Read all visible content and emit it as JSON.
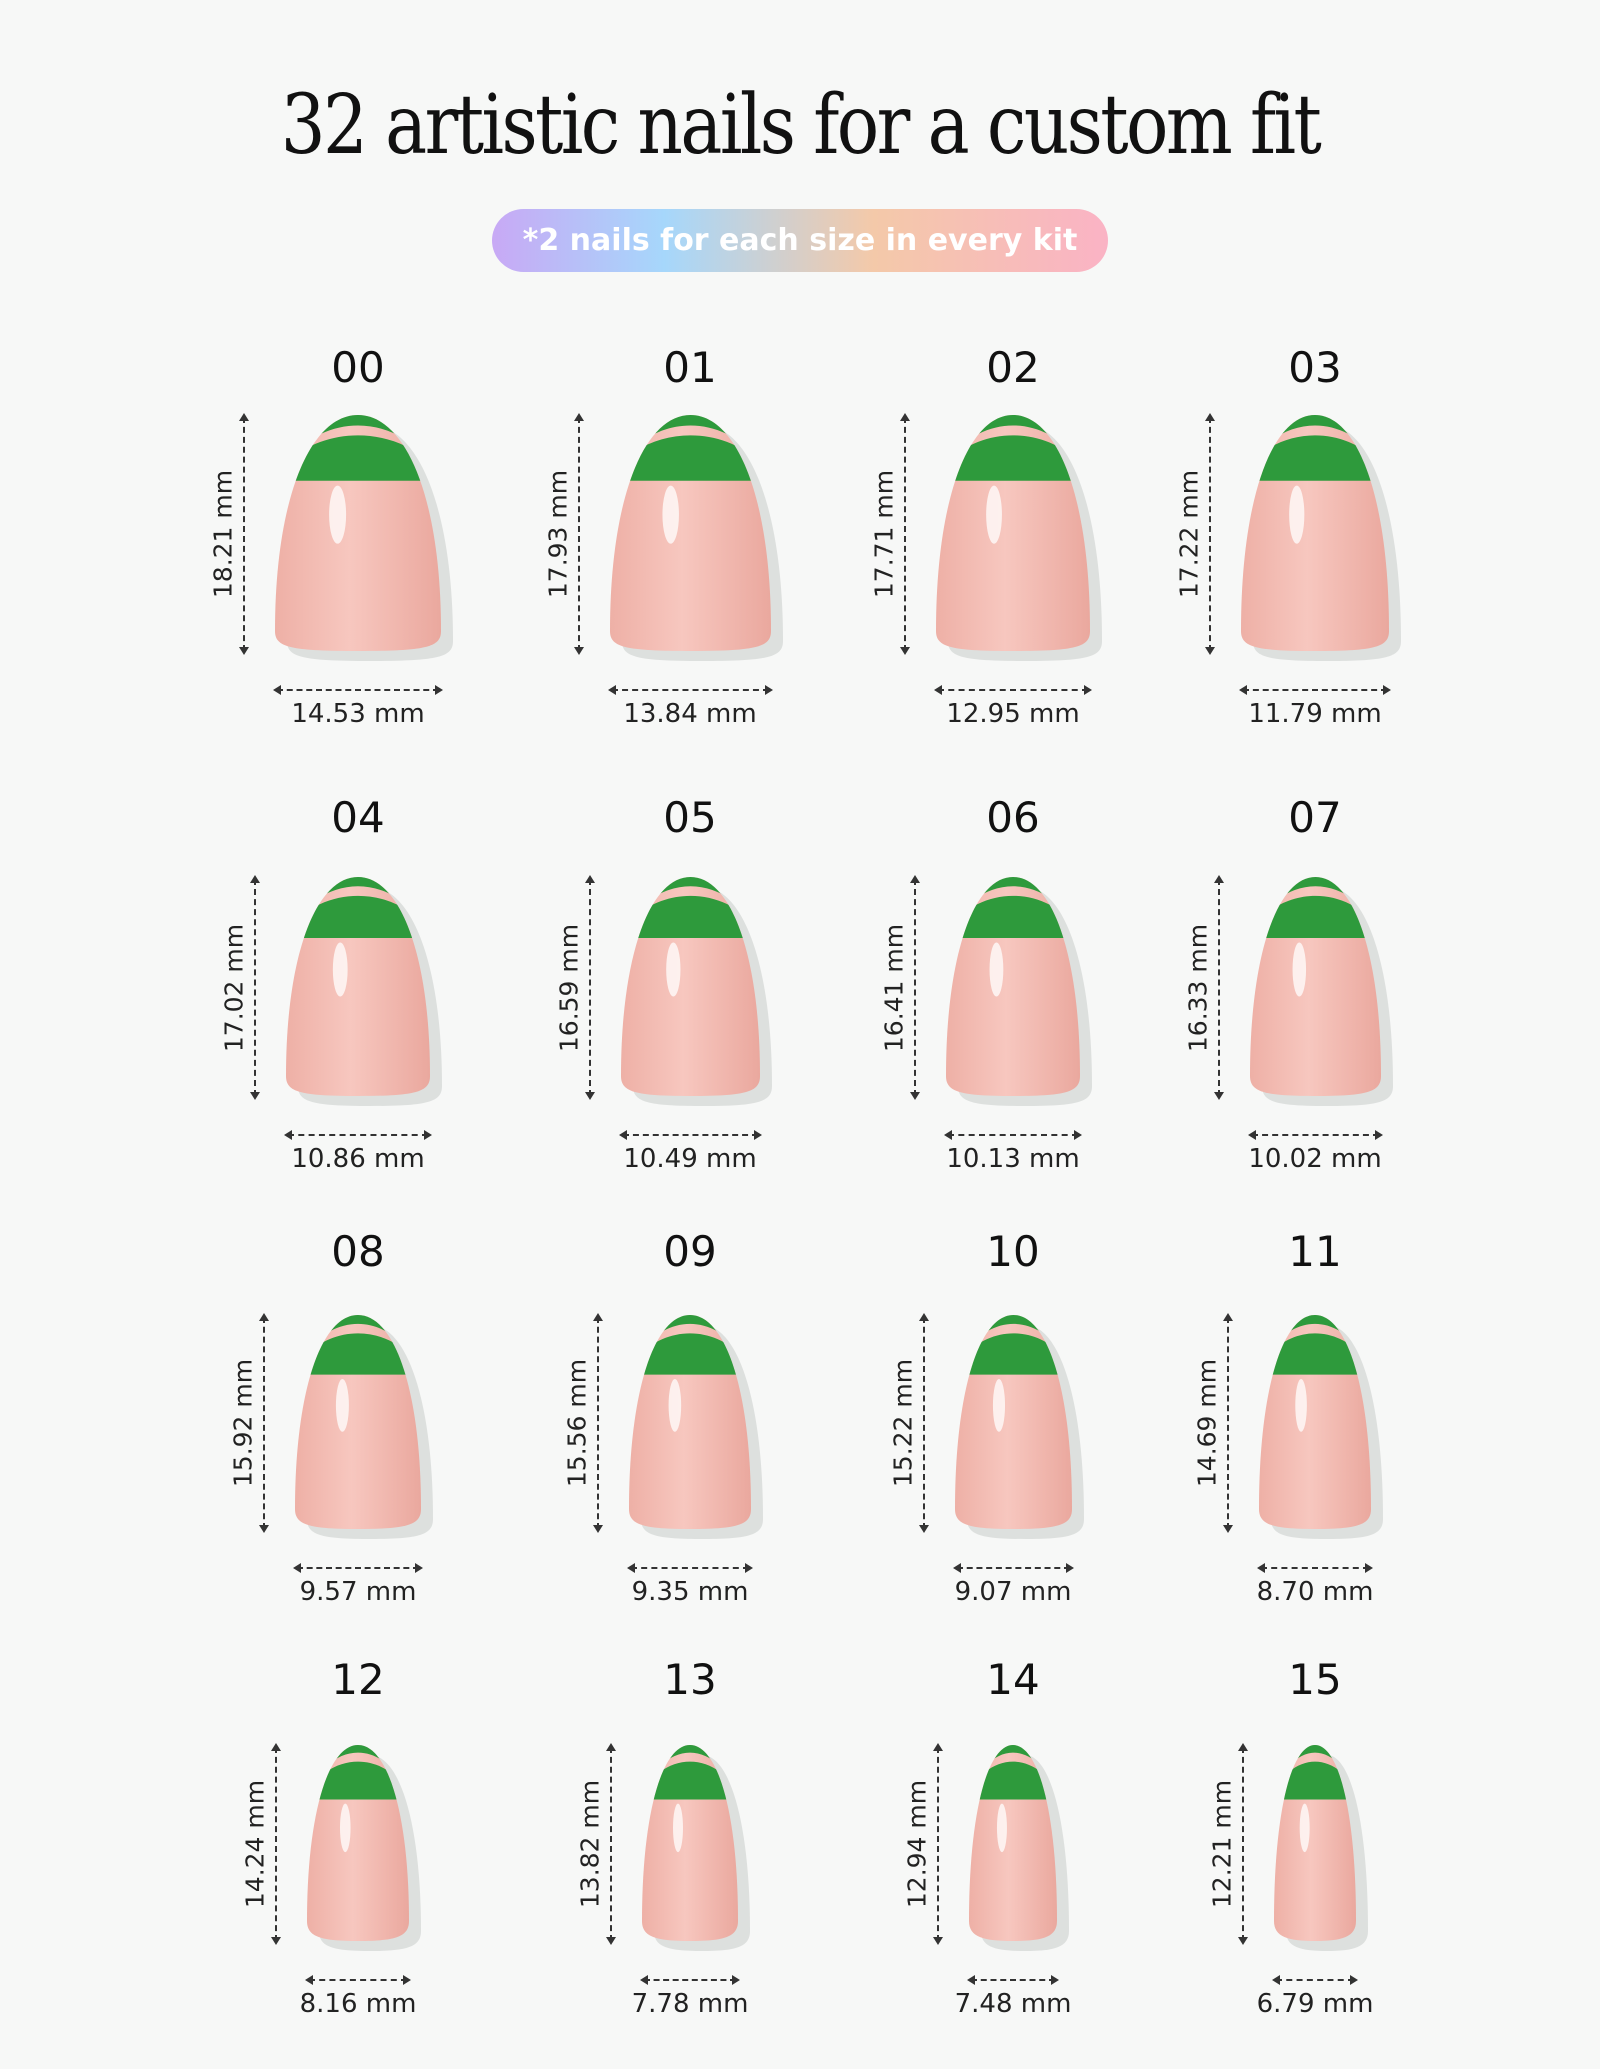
{
  "title": "32 artistic nails for a custom fit",
  "subtitle": "*2 nails for each size in every kit",
  "colors": {
    "tip": "#2e9a3c",
    "nail_body": "#f3b9b1",
    "shadow": "#c9cccb"
  },
  "sizes": [
    {
      "id": "00",
      "height": "18.21 mm",
      "width": "14.53 mm"
    },
    {
      "id": "01",
      "height": "17.93 mm",
      "width": "13.84 mm"
    },
    {
      "id": "02",
      "height": "17.71 mm",
      "width": "12.95 mm"
    },
    {
      "id": "03",
      "height": "17.22 mm",
      "width": "11.79 mm"
    },
    {
      "id": "04",
      "height": "17.02 mm",
      "width": "10.86 mm"
    },
    {
      "id": "05",
      "height": "16.59 mm",
      "width": "10.49 mm"
    },
    {
      "id": "06",
      "height": "16.41 mm",
      "width": "10.13 mm"
    },
    {
      "id": "07",
      "height": "16.33 mm",
      "width": "10.02 mm"
    },
    {
      "id": "08",
      "height": "15.92 mm",
      "width": "9.57 mm"
    },
    {
      "id": "09",
      "height": "15.56 mm",
      "width": "9.35 mm"
    },
    {
      "id": "10",
      "height": "15.22 mm",
      "width": "9.07 mm"
    },
    {
      "id": "11",
      "height": "14.69 mm",
      "width": "8.70 mm"
    },
    {
      "id": "12",
      "height": "14.24 mm",
      "width": "8.16 mm"
    },
    {
      "id": "13",
      "height": "13.82 mm",
      "width": "7.78 mm"
    },
    {
      "id": "14",
      "height": "12.94 mm",
      "width": "7.48 mm"
    },
    {
      "id": "15",
      "height": "12.21 mm",
      "width": "6.79 mm"
    }
  ]
}
